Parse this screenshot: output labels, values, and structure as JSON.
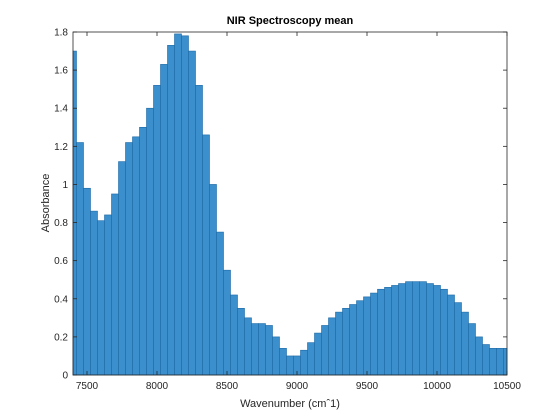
{
  "chart_data": {
    "type": "bar",
    "title": "NIR Spectroscopy mean",
    "xlabel": "Wavenumber (cmˆ1)",
    "ylabel": "Absorbance",
    "xlim": [
      7400,
      10500
    ],
    "ylim": [
      0,
      1.8
    ],
    "xticks": [
      "7500",
      "8000",
      "8500",
      "9000",
      "9500",
      "10000",
      "10500"
    ],
    "yticks": [
      "0",
      "0.2",
      "0.4",
      "0.6",
      "0.8",
      "1",
      "1.2",
      "1.4",
      "1.6",
      "1.8"
    ],
    "grid": false,
    "bar_color": "#3a8fcc",
    "edge_color": "#1f6aa6",
    "series": [
      {
        "x": [
          7400,
          7450,
          7500,
          7550,
          7600,
          7650,
          7700,
          7750,
          7800,
          7850,
          7900,
          7950,
          8000,
          8050,
          8100,
          8150,
          8200,
          8250,
          8300,
          8350,
          8400,
          8450,
          8500,
          8550,
          8600,
          8650,
          8700,
          8750,
          8800,
          8850,
          8900,
          8950,
          9000,
          9050,
          9100,
          9150,
          9200,
          9250,
          9300,
          9350,
          9400,
          9450,
          9500,
          9550,
          9600,
          9650,
          9700,
          9750,
          9800,
          9850,
          9900,
          9950,
          10000,
          10050,
          10100,
          10150,
          10200,
          10250,
          10300,
          10350,
          10400,
          10450,
          10500
        ],
        "values": [
          1.7,
          1.22,
          0.98,
          0.86,
          0.81,
          0.84,
          0.95,
          1.12,
          1.22,
          1.25,
          1.3,
          1.4,
          1.52,
          1.63,
          1.73,
          1.79,
          1.78,
          1.7,
          1.52,
          1.26,
          1.0,
          0.75,
          0.55,
          0.42,
          0.35,
          0.3,
          0.27,
          0.27,
          0.26,
          0.2,
          0.14,
          0.1,
          0.1,
          0.13,
          0.17,
          0.22,
          0.26,
          0.3,
          0.33,
          0.35,
          0.37,
          0.39,
          0.41,
          0.43,
          0.45,
          0.46,
          0.47,
          0.48,
          0.49,
          0.49,
          0.49,
          0.48,
          0.47,
          0.45,
          0.42,
          0.38,
          0.33,
          0.27,
          0.2,
          0.16,
          0.14,
          0.14,
          0.14
        ]
      }
    ]
  }
}
